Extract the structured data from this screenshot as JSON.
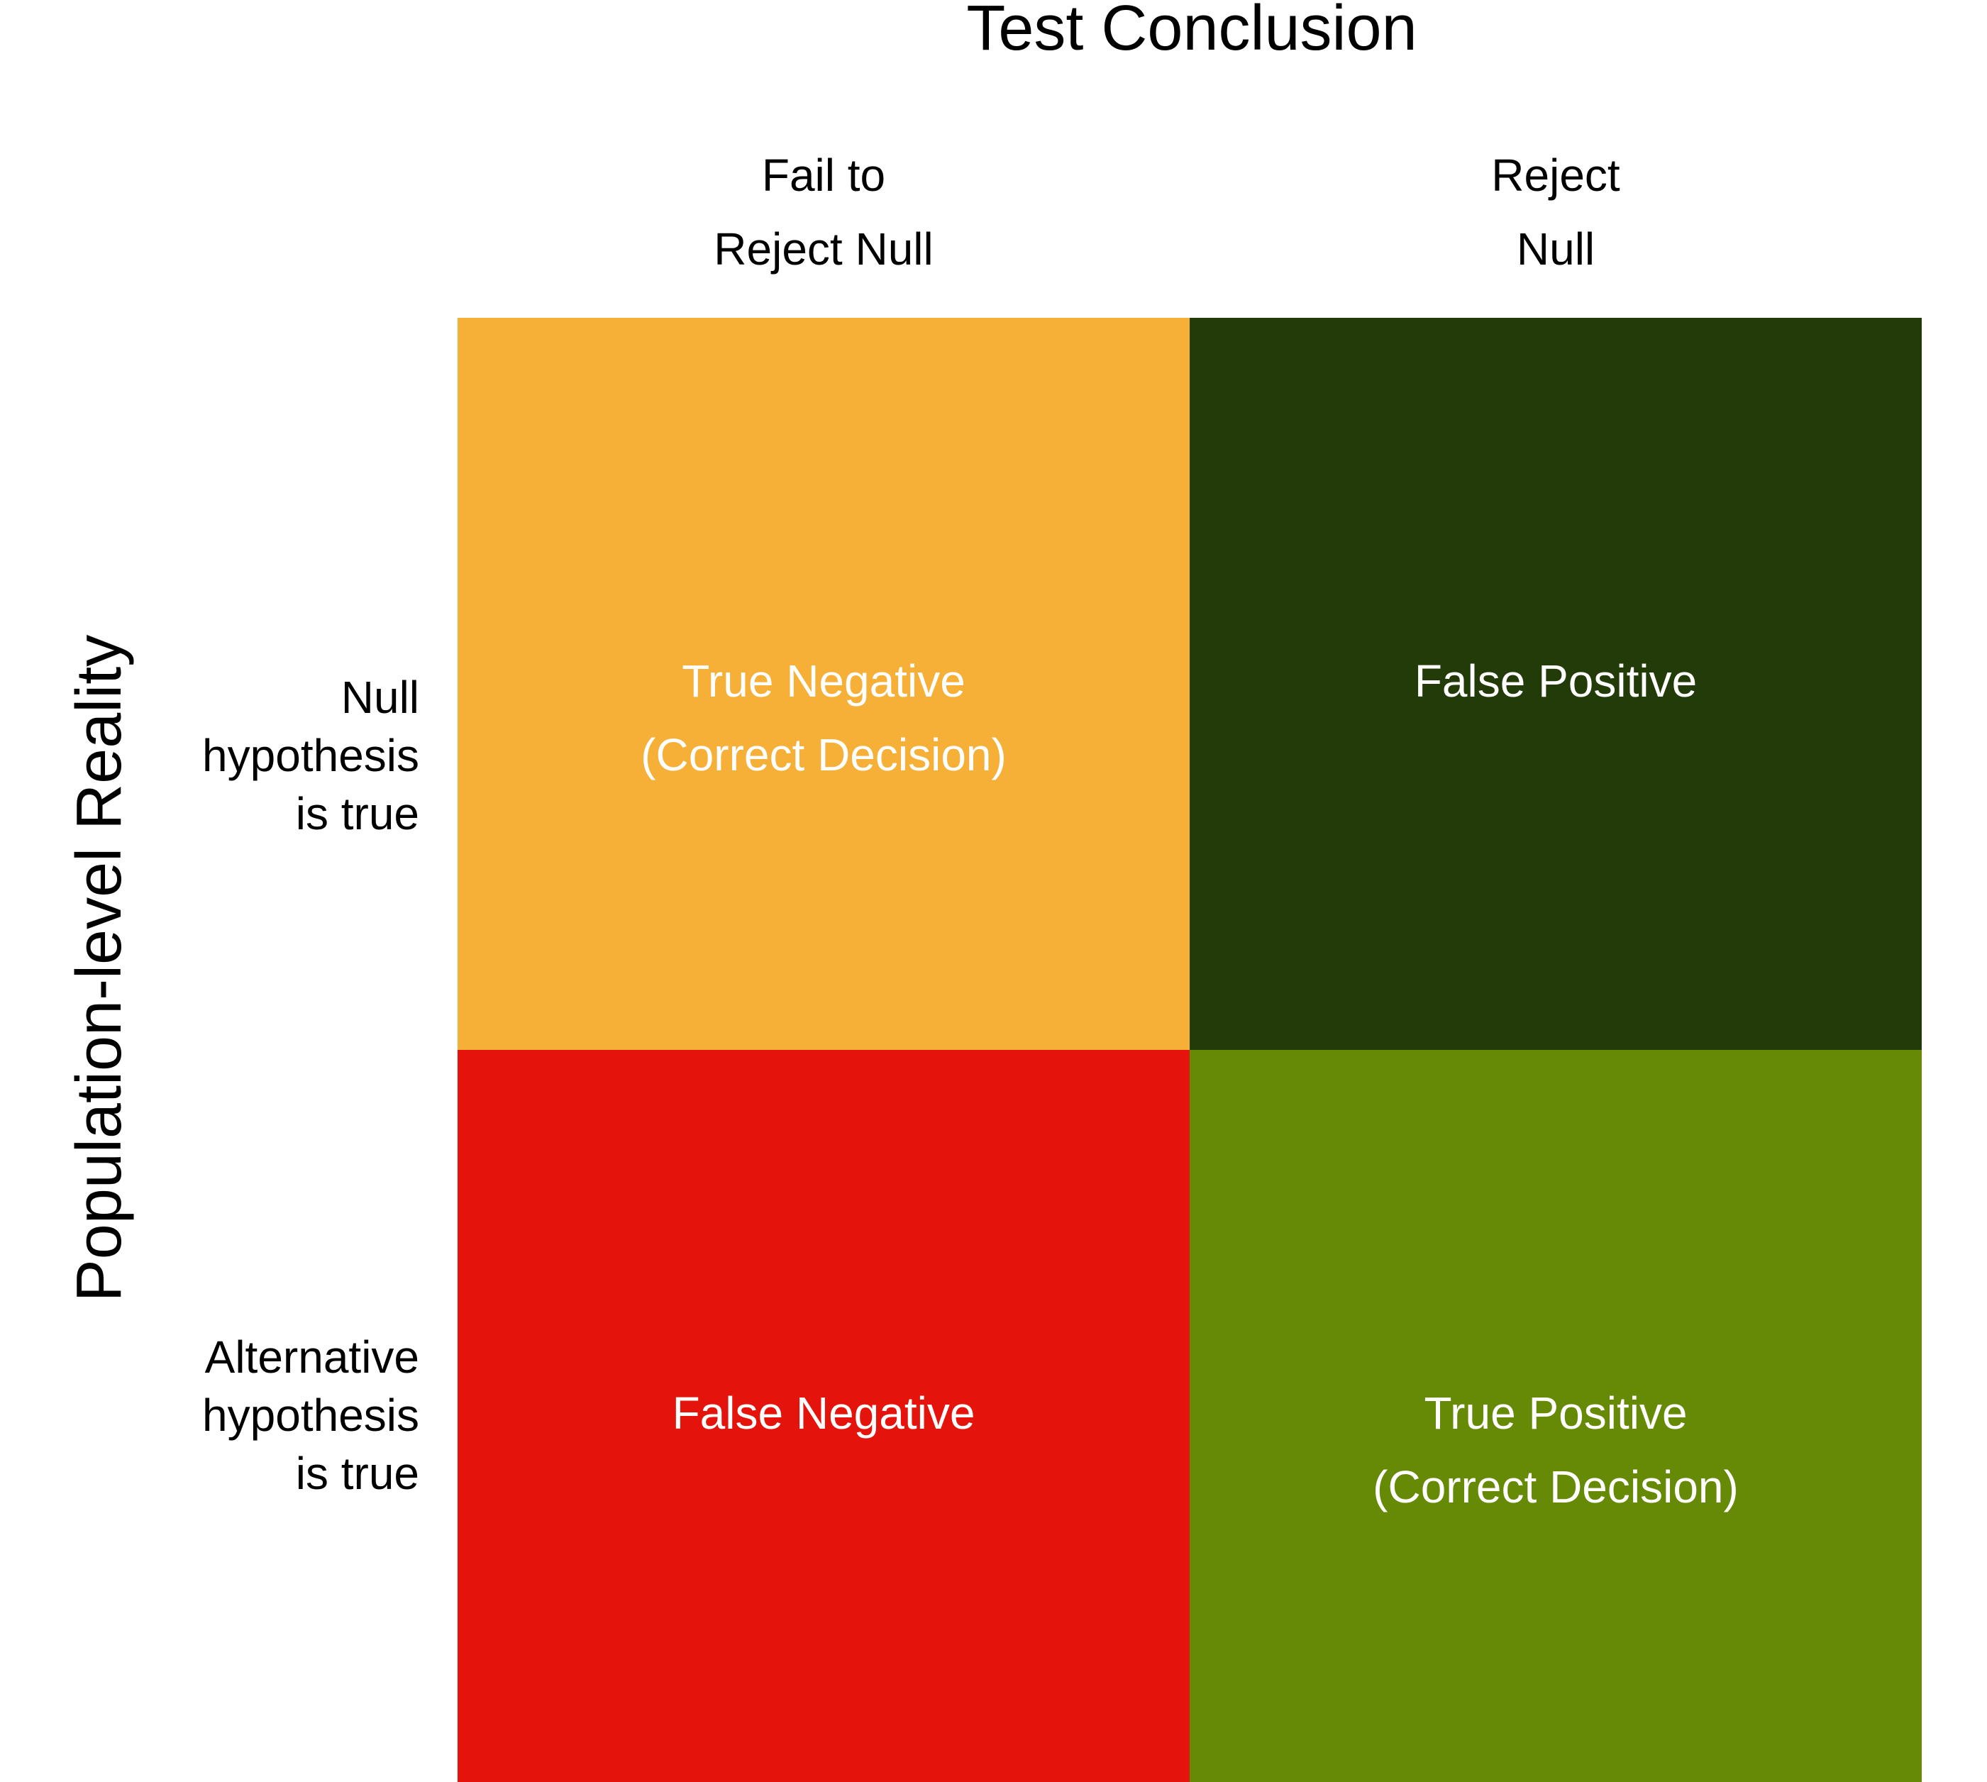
{
  "title": "Test Conclusion",
  "y_axis_title": "Population-level Reality",
  "columns": [
    {
      "line1": "Fail to",
      "line2": "Reject Null"
    },
    {
      "line1": "Reject",
      "line2": "Null"
    }
  ],
  "rows": [
    {
      "line1": "Null",
      "line2": "hypothesis",
      "line3": "is true"
    },
    {
      "line1": "Alternative",
      "line2": "hypothesis",
      "line3": "is true"
    }
  ],
  "cells": {
    "true_negative": {
      "line1": "True Negative",
      "line2": "(Correct Decision)",
      "color": "#f6af37"
    },
    "false_positive": {
      "line1": "False Positive",
      "line2": "",
      "color": "#233a09"
    },
    "false_negative": {
      "line1": "False Negative",
      "line2": "",
      "color": "#e4130b"
    },
    "true_positive": {
      "line1": "True Positive",
      "line2": "(Correct Decision)",
      "color": "#668906"
    }
  }
}
